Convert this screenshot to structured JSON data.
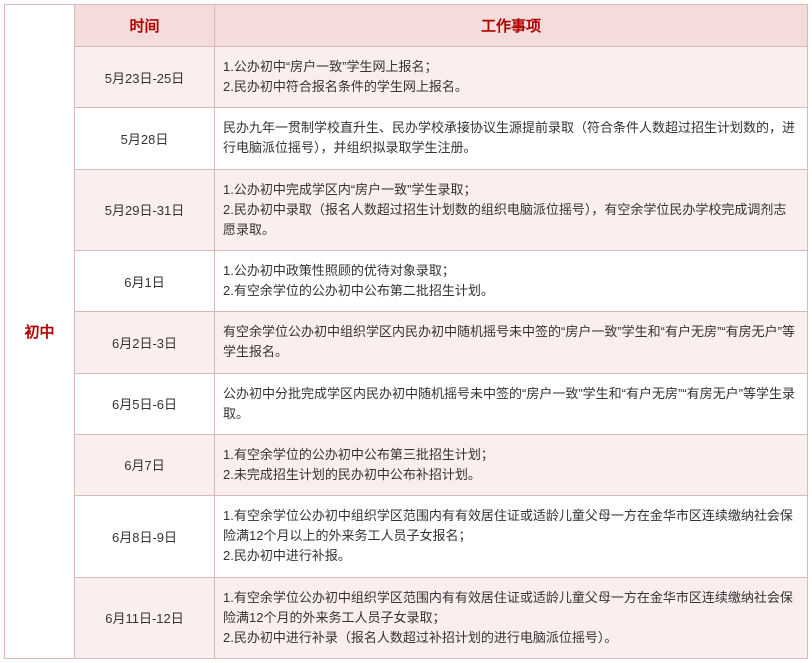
{
  "table": {
    "category_label": "初中",
    "headers": {
      "time": "时间",
      "work": "工作事项"
    },
    "colors": {
      "header_bg": "#f5dcdc",
      "header_text": "#b00000",
      "alt_row_bg": "#fbeeee",
      "border": "#d9b8b8",
      "body_text": "#333333"
    },
    "font": {
      "header_size_pt": 11,
      "body_size_pt": 10,
      "family": "Microsoft YaHei / SimSun"
    },
    "rows": [
      {
        "time": "5月23日-25日",
        "work": "1.公办初中“房户一致”学生网上报名；\n2.民办初中符合报名条件的学生网上报名。",
        "alt": true
      },
      {
        "time": "5月28日",
        "work": "民办九年一贯制学校直升生、民办学校承接协议生源提前录取（符合条件人数超过招生计划数的，进行电脑派位摇号），并组织拟录取学生注册。",
        "alt": false
      },
      {
        "time": "5月29日-31日",
        "work": "1.公办初中完成学区内“房户一致”学生录取；\n2.民办初中录取（报名人数超过招生计划数的组织电脑派位摇号），有空余学位民办学校完成调剂志愿录取。",
        "alt": true
      },
      {
        "time": "6月1日",
        "work": "1.公办初中政策性照顾的优待对象录取；\n2.有空余学位的公办初中公布第二批招生计划。",
        "alt": false
      },
      {
        "time": "6月2日-3日",
        "work": "有空余学位公办初中组织学区内民办初中随机摇号未中签的“房户一致”学生和“有户无房”“有房无户”等学生报名。",
        "alt": true
      },
      {
        "time": "6月5日-6日",
        "work": "公办初中分批完成学区内民办初中随机摇号未中签的“房户一致”学生和“有户无房”“有房无户”等学生录取。",
        "alt": false
      },
      {
        "time": "6月7日",
        "work": "1.有空余学位的公办初中公布第三批招生计划；\n2.未完成招生计划的民办初中公布补招计划。",
        "alt": true
      },
      {
        "time": "6月8日-9日",
        "work": "1.有空余学位公办初中组织学区范围内有有效居住证或适龄儿童父母一方在金华市区连续缴纳社会保险满12个月以上的外来务工人员子女报名；\n2.民办初中进行补报。",
        "alt": false
      },
      {
        "time": "6月11日-12日",
        "work": "1.有空余学位公办初中组织学区范围内有有效居住证或适龄儿童父母一方在金华市区连续缴纳社会保险满12个月的外来务工人员子女录取；\n2.民办初中进行补录（报名人数超过补招计划的进行电脑派位摇号）。",
        "alt": true
      }
    ]
  }
}
